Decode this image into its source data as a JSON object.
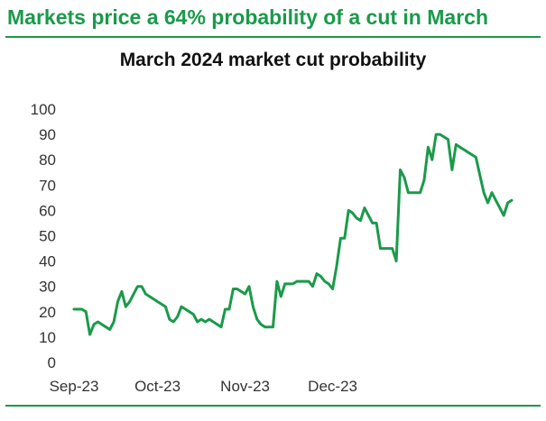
{
  "headline": "Markets price a 64% probability of a cut in March",
  "colors": {
    "accent": "#1a9a4a",
    "line": "#1a9a4a",
    "text": "#111111"
  },
  "chart_data": {
    "type": "line",
    "title": "March 2024 market cut probability",
    "xlabel": "",
    "ylabel": "",
    "ylim": [
      0,
      100
    ],
    "yticks": [
      0,
      10,
      20,
      30,
      40,
      50,
      60,
      70,
      80,
      90,
      100
    ],
    "x_ticks": [
      {
        "label": "Sep-23",
        "index": 0
      },
      {
        "label": "Oct-23",
        "index": 21
      },
      {
        "label": "Nov-23",
        "index": 43
      },
      {
        "label": "Dec-23",
        "index": 65
      }
    ],
    "grid": false,
    "legend": "none",
    "series": [
      {
        "values": [
          21,
          21,
          21,
          20,
          11,
          15,
          16,
          15,
          14,
          13,
          16,
          24,
          28,
          22,
          24,
          27,
          30,
          30,
          27,
          26,
          25,
          24,
          23,
          22,
          17,
          16,
          18,
          22,
          21,
          20,
          19,
          16,
          17,
          16,
          17,
          16,
          15,
          14,
          21,
          21,
          29,
          29,
          28,
          27,
          30,
          22,
          17,
          15,
          14,
          14,
          14,
          32,
          26,
          31,
          31,
          31,
          32,
          32,
          32,
          32,
          30,
          35,
          34,
          32,
          31,
          29,
          38,
          49,
          49,
          60,
          59,
          57,
          56,
          61,
          58,
          55,
          55,
          45,
          45,
          45,
          45,
          40,
          76,
          73,
          67,
          67,
          67,
          67,
          72,
          85,
          80,
          90,
          90,
          89,
          88,
          76,
          86,
          85,
          84,
          83,
          82,
          81,
          74,
          67,
          63,
          67,
          64,
          61,
          58,
          63,
          64
        ]
      }
    ]
  }
}
